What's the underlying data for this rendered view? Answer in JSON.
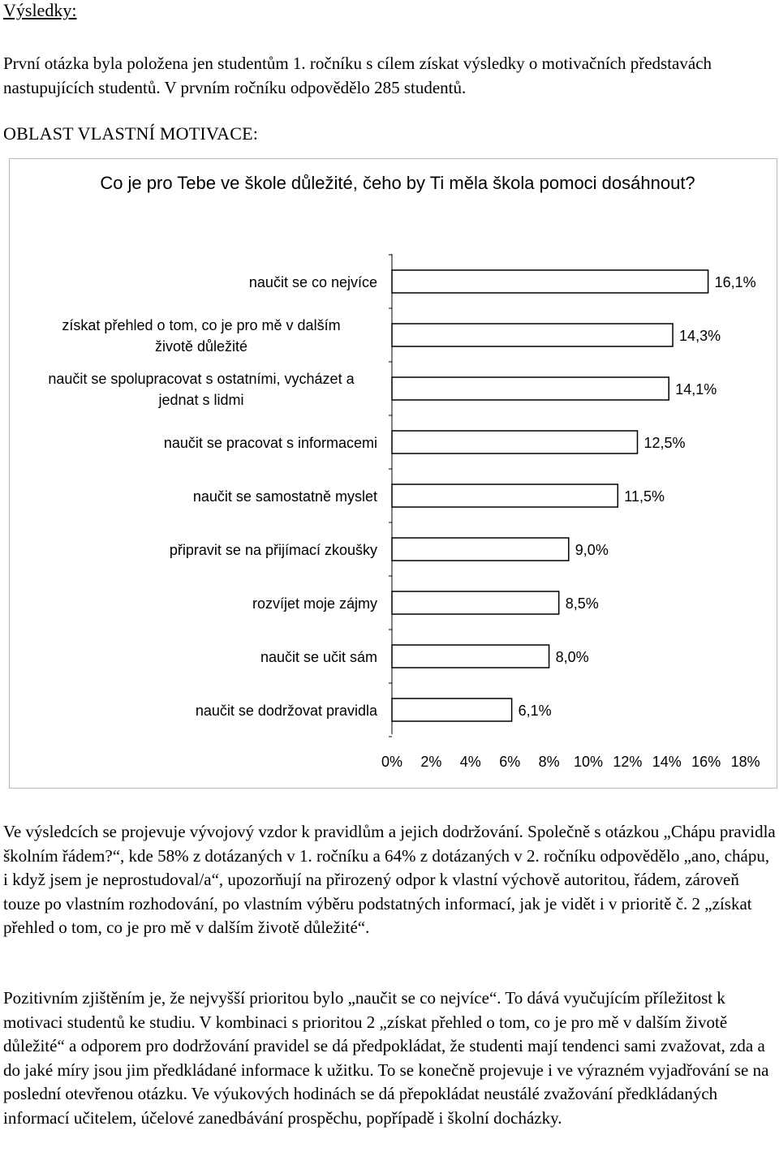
{
  "heading": "Výsledky:",
  "intro": "První otázka byla položena jen studentům 1. ročníku s cílem získat výsledky o motivačních představách nastupujících studentů. V prvním ročníku odpovědělo 285 studentů.",
  "area_title": "OBLAST VLASTNÍ MOTIVACE:",
  "chart_data": {
    "type": "bar",
    "orientation": "horizontal",
    "title": "Co je pro Tebe ve škole důležité, čeho by Ti měla škola pomoci dosáhnout?",
    "categories": [
      "naučit se co nejvíce",
      "získat přehled o tom, co je pro mě v dalším životě důležité",
      "naučit se spolupracovat s ostatními, vycházet a jednat s lidmi",
      "naučit se pracovat s informacemi",
      "naučit se samostatně myslet",
      "připravit se na přijímací zkoušky",
      "rozvíjet moje zájmy",
      "naučit se učit sám",
      "naučit se dodržovat pravidla"
    ],
    "values": [
      16.1,
      14.3,
      14.1,
      12.5,
      11.5,
      9.0,
      8.5,
      8.0,
      6.1
    ],
    "value_labels": [
      "16,1%",
      "14,3%",
      "14,1%",
      "12,5%",
      "11,5%",
      "9,0%",
      "8,5%",
      "8,0%",
      "6,1%"
    ],
    "category_label_lines": [
      [
        "naučit se co nejvíce"
      ],
      [
        "získat přehled o tom, co je pro mě v dalším",
        "životě důležité"
      ],
      [
        "naučit se spolupracovat s ostatními, vycházet a",
        "jednat s lidmi"
      ],
      [
        "naučit se pracovat s informacemi"
      ],
      [
        "naučit se samostatně myslet"
      ],
      [
        "připravit se na přijímací zkoušky"
      ],
      [
        "rozvíjet moje zájmy"
      ],
      [
        "naučit se učit sám"
      ],
      [
        "naučit se dodržovat pravidla"
      ]
    ],
    "x_ticks": [
      0,
      2,
      4,
      6,
      8,
      10,
      12,
      14,
      16,
      18
    ],
    "x_tick_labels": [
      "0%",
      "2%",
      "4%",
      "6%",
      "8%",
      "10%",
      "12%",
      "14%",
      "16%",
      "18%"
    ],
    "xlim": [
      0,
      18
    ],
    "grid": false,
    "legend": "none",
    "bar_color": "#ffffff",
    "bar_border_color": "#000000"
  },
  "paragraph_1": "Ve výsledcích se projevuje vývojový vzdor k pravidlům a jejich dodržování. Společně s otázkou „Chápu pravidla školním řádem?“, kde 58% z dotázaných v 1. ročníku a 64% z dotázaných v 2. ročníku odpovědělo „ano, chápu, i když jsem je neprostudoval/a“, upozorňují na přirozený odpor k vlastní výchově autoritou, řádem, zároveň touze po vlastním rozhodování, po vlastním výběru podstatných informací, jak je vidět i v prioritě č. 2 „získat přehled o tom, co je pro mě v dalším životě důležité“.",
  "paragraph_2": "Pozitivním zjištěním je, že nejvyšší prioritou bylo „naučit se co nejvíce“. To dává vyučujícím příležitost k motivaci studentů ke studiu. V kombinaci s prioritou 2 „získat přehled o tom, co je pro mě v dalším životě důležité“ a odporem pro dodržování pravidel se dá předpokládat, že studenti mají tendenci sami zvažovat, zda a do jaké míry jsou jim předkládané informace k užitku. To se konečně projevuje i ve výrazném vyjadřování se na poslední otevřenou otázku. Ve výukových hodinách se dá přepokládat neustálé zvažování předkládaných informací učitelem, účelové zanedbávání prospěchu, popřípadě i školní docházky."
}
